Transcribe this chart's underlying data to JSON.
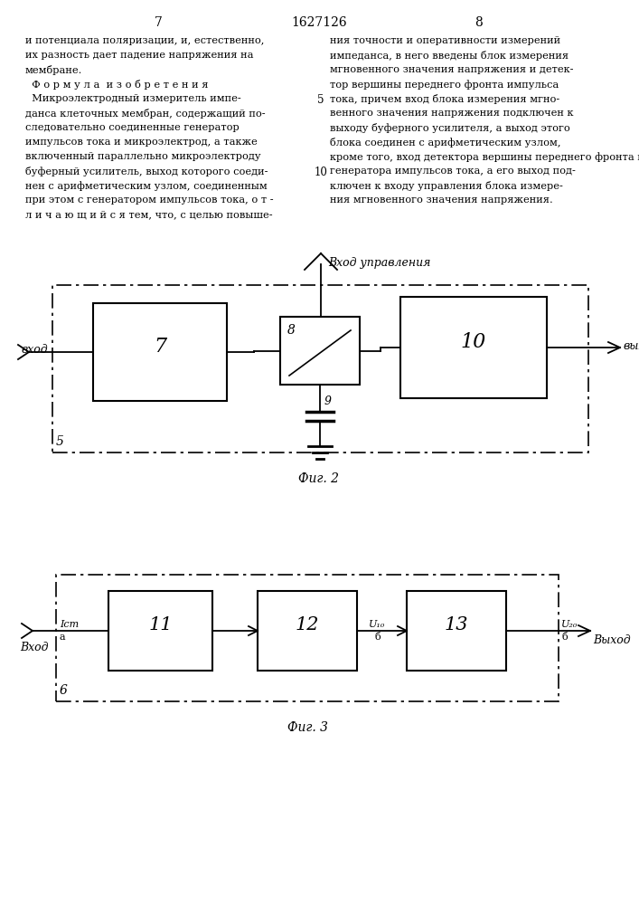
{
  "page_num_left": "7",
  "page_num_center": "1627126",
  "page_num_right": "8",
  "bg_color": "#ffffff",
  "text_color": "#000000",
  "left_col_lines": [
    "и потенциала поляризации, и, естественно,",
    "их разность дает падение напряжения на",
    "мембране.",
    "  Ф о р м у л а  и з о б р е т е н и я",
    "  Микроэлектродный измеритель импе-",
    "данса клеточных мембран, содержащий по-",
    "следовательно соединенные генератор",
    "импульсов тока и микроэлектрод, а также",
    "включенный параллельно микроэлектроду",
    "буферный усилитель, выход которого соеди-",
    "нен с арифметическим узлом, соединенным",
    "при этом с генератором импульсов тока, о т -",
    "л и ч а ю щ и й с я тем, что, с целью повыше-"
  ],
  "right_col_lines": [
    "ния точности и оперативности измерений",
    "импеданса, в него введены блок измерения",
    "мгновенного значения напряжения и детек-",
    "тор вершины переднего фронта импульса",
    "тока, причем вход блока измерения мгно-",
    "венного значения напряжения подключен к",
    "выходу буферного усилителя, а выход этого",
    "блока соединен с арифметическим узлом,",
    "кроме того, вход детектора вершины переднего фронта импульса тока соединен с выходом",
    "генератора импульсов тока, а его выход под-",
    "ключен к входу управления блока измере-",
    "ния мгновенного значения напряжения."
  ],
  "linenum_5_row": 4,
  "linenum_10_row": 9,
  "fig2_caption": "Фиг. 2",
  "fig3_caption": "Фиг. 3",
  "fig2": {
    "block7_label": "7",
    "block8_label": "8",
    "block10_label": "10",
    "block5_label": "5",
    "block9_label": "9",
    "vhod_ctrl_label": "Вход управления",
    "vhod_left_label": "вход",
    "vyhod_label": "выход"
  },
  "fig3": {
    "block11_label": "11",
    "block12_label": "12",
    "block13_label": "13",
    "block6_label": "6",
    "ist_label": "Iст",
    "a_label": "а",
    "u10_label": "U₁₀",
    "b_label1": "б",
    "u20_label": "U₂₀",
    "b_label2": "б",
    "vhod_label": "Вход",
    "vyhod_label": "Выход"
  }
}
